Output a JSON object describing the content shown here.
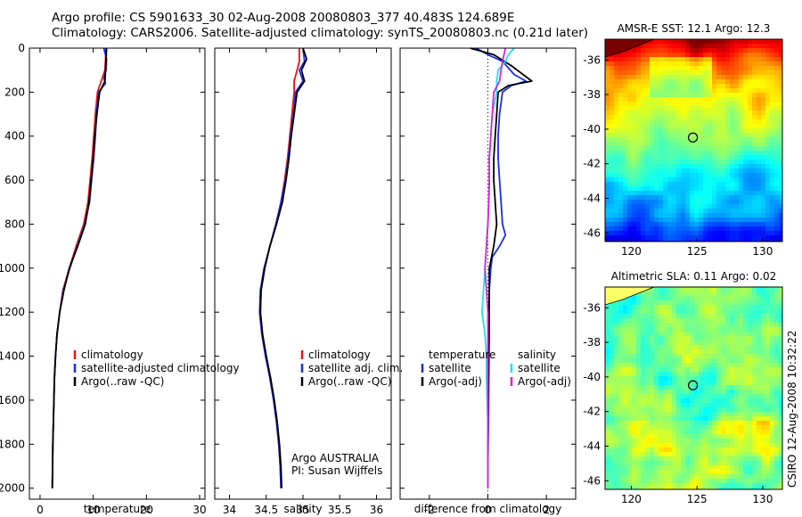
{
  "header": {
    "line1": "Argo profile: CS 5901633_30 02-Aug-2008 20080803_377 40.483S 124.689E",
    "line2": "Climatology: CARS2006. Satellite-adjusted climatology: synTS_20080803.nc (0.21d later)"
  },
  "side_caption": "CSIRO 12-Aug-2008 10:32:22",
  "colors": {
    "climatology": "#ee1111",
    "satellite": "#1a2ee6",
    "argo": "#000000",
    "salinity_satellite": "#22e0ee",
    "salinity_argo": "#dd22dd"
  },
  "chart_data": [
    {
      "type": "line",
      "name": "temperature-panel",
      "xlabel": "temperature",
      "ylabel": "",
      "xlim": [
        -2,
        31
      ],
      "ylim": [
        2050,
        0
      ],
      "xticks": [
        0,
        10,
        20,
        30
      ],
      "yticks": [
        0,
        200,
        400,
        600,
        800,
        1000,
        1200,
        1400,
        1600,
        1800,
        2000
      ],
      "legend": [
        "climatology",
        "satellite-adjusted climatology",
        "Argo(..raw -QC)"
      ],
      "series": [
        {
          "name": "climatology",
          "color": "#ee1111",
          "points": [
            [
              12.4,
              0
            ],
            [
              12.3,
              50
            ],
            [
              12.2,
              100
            ],
            [
              11.5,
              150
            ],
            [
              10.8,
              200
            ],
            [
              10.4,
              300
            ],
            [
              10.1,
              400
            ],
            [
              9.8,
              500
            ],
            [
              9.4,
              600
            ],
            [
              9.0,
              700
            ],
            [
              8.2,
              800
            ],
            [
              6.8,
              900
            ],
            [
              5.5,
              1000
            ],
            [
              4.3,
              1100
            ],
            [
              3.7,
              1200
            ],
            [
              3.2,
              1300
            ],
            [
              2.9,
              1400
            ],
            [
              2.7,
              1500
            ],
            [
              2.6,
              1600
            ],
            [
              2.5,
              1700
            ],
            [
              2.4,
              1800
            ],
            [
              2.35,
              1900
            ],
            [
              2.3,
              2000
            ]
          ]
        },
        {
          "name": "satellite-adjusted climatology",
          "color": "#1a2ee6",
          "points": [
            [
              12.0,
              0
            ],
            [
              12.5,
              50
            ],
            [
              12.4,
              100
            ],
            [
              12.0,
              140
            ],
            [
              12.3,
              160
            ],
            [
              11.0,
              200
            ],
            [
              10.6,
              300
            ],
            [
              10.4,
              400
            ],
            [
              10.1,
              500
            ],
            [
              9.7,
              600
            ],
            [
              9.3,
              700
            ],
            [
              8.4,
              800
            ],
            [
              7.0,
              900
            ],
            [
              5.6,
              1000
            ],
            [
              4.4,
              1100
            ],
            [
              3.7,
              1200
            ],
            [
              3.2,
              1300
            ],
            [
              2.9,
              1400
            ],
            [
              2.7,
              1500
            ],
            [
              2.6,
              1600
            ],
            [
              2.5,
              1700
            ],
            [
              2.4,
              1800
            ],
            [
              2.35,
              1900
            ],
            [
              2.3,
              2000
            ]
          ]
        },
        {
          "name": "Argo(..raw -QC)",
          "color": "#000000",
          "points": [
            [
              12.5,
              0
            ],
            [
              12.4,
              50
            ],
            [
              12.3,
              100
            ],
            [
              12.2,
              150
            ],
            [
              11.2,
              200
            ],
            [
              10.7,
              300
            ],
            [
              10.3,
              400
            ],
            [
              10.0,
              500
            ],
            [
              9.6,
              600
            ],
            [
              9.2,
              700
            ],
            [
              8.5,
              800
            ],
            [
              7.1,
              900
            ],
            [
              5.5,
              1000
            ],
            [
              4.5,
              1100
            ],
            [
              3.7,
              1200
            ],
            [
              3.2,
              1300
            ],
            [
              2.9,
              1400
            ],
            [
              2.7,
              1500
            ],
            [
              2.6,
              1600
            ],
            [
              2.5,
              1700
            ],
            [
              2.4,
              1800
            ],
            [
              2.35,
              1900
            ],
            [
              2.3,
              2000
            ]
          ]
        }
      ]
    },
    {
      "type": "line",
      "name": "salinity-panel",
      "xlabel": "salinity",
      "xlim": [
        33.8,
        36.2
      ],
      "ylim": [
        2050,
        0
      ],
      "xticks": [
        34,
        34.5,
        35,
        35.5,
        36
      ],
      "legend": [
        "climatology",
        "satellite adj. clim.",
        "Argo(..raw -QC)"
      ],
      "annotation": [
        "Argo AUSTRALIA",
        "PI: Susan Wijffels"
      ],
      "series": [
        {
          "name": "climatology",
          "color": "#ee1111",
          "points": [
            [
              34.95,
              0
            ],
            [
              34.95,
              60
            ],
            [
              34.92,
              100
            ],
            [
              34.88,
              150
            ],
            [
              34.88,
              200
            ],
            [
              34.85,
              300
            ],
            [
              34.82,
              400
            ],
            [
              34.79,
              500
            ],
            [
              34.75,
              600
            ],
            [
              34.7,
              700
            ],
            [
              34.64,
              800
            ],
            [
              34.55,
              900
            ],
            [
              34.48,
              1000
            ],
            [
              34.43,
              1100
            ],
            [
              34.42,
              1200
            ],
            [
              34.45,
              1300
            ],
            [
              34.5,
              1400
            ],
            [
              34.55,
              1500
            ],
            [
              34.6,
              1600
            ],
            [
              34.64,
              1700
            ],
            [
              34.67,
              1800
            ],
            [
              34.69,
              1900
            ],
            [
              34.7,
              2000
            ]
          ]
        },
        {
          "name": "satellite adj. clim.",
          "color": "#1a2ee6",
          "points": [
            [
              35.0,
              0
            ],
            [
              35.02,
              60
            ],
            [
              34.95,
              100
            ],
            [
              35.0,
              150
            ],
            [
              34.9,
              200
            ],
            [
              34.87,
              300
            ],
            [
              34.83,
              400
            ],
            [
              34.8,
              500
            ],
            [
              34.76,
              600
            ],
            [
              34.7,
              700
            ],
            [
              34.63,
              800
            ],
            [
              34.55,
              900
            ],
            [
              34.47,
              1000
            ],
            [
              34.42,
              1100
            ],
            [
              34.41,
              1200
            ],
            [
              34.44,
              1300
            ],
            [
              34.49,
              1400
            ],
            [
              34.55,
              1500
            ],
            [
              34.6,
              1600
            ],
            [
              34.64,
              1700
            ],
            [
              34.67,
              1800
            ],
            [
              34.69,
              1900
            ],
            [
              34.7,
              2000
            ]
          ]
        },
        {
          "name": "Argo(..raw -QC)",
          "color": "#000000",
          "points": [
            [
              35.0,
              0
            ],
            [
              35.05,
              50
            ],
            [
              34.98,
              100
            ],
            [
              35.02,
              150
            ],
            [
              34.92,
              200
            ],
            [
              34.88,
              300
            ],
            [
              34.84,
              400
            ],
            [
              34.81,
              500
            ],
            [
              34.77,
              600
            ],
            [
              34.72,
              700
            ],
            [
              34.64,
              800
            ],
            [
              34.55,
              900
            ],
            [
              34.48,
              1000
            ],
            [
              34.43,
              1100
            ],
            [
              34.42,
              1200
            ],
            [
              34.45,
              1300
            ],
            [
              34.5,
              1400
            ],
            [
              34.56,
              1500
            ],
            [
              34.61,
              1600
            ],
            [
              34.65,
              1700
            ],
            [
              34.68,
              1800
            ],
            [
              34.7,
              1900
            ],
            [
              34.71,
              2000
            ]
          ]
        }
      ]
    },
    {
      "type": "line",
      "name": "difference-panel",
      "xlabel": "difference from climatology",
      "xlim": [
        -3,
        3
      ],
      "ylim": [
        2050,
        0
      ],
      "xticks": [
        -2,
        0,
        2
      ],
      "legend": {
        "temperature": [
          "temperature",
          "satellite",
          "Argo(-adj)"
        ],
        "salinity": [
          "salinity",
          "satellite",
          "Argo(-adj)"
        ]
      },
      "series": [
        {
          "name": "temperature satellite",
          "color": "#1a2ee6",
          "points": [
            [
              -0.4,
              0
            ],
            [
              0.0,
              30
            ],
            [
              0.5,
              60
            ],
            [
              0.9,
              120
            ],
            [
              1.3,
              150
            ],
            [
              0.8,
              170
            ],
            [
              0.5,
              200
            ],
            [
              0.4,
              300
            ],
            [
              0.35,
              400
            ],
            [
              0.35,
              500
            ],
            [
              0.4,
              600
            ],
            [
              0.45,
              700
            ],
            [
              0.5,
              800
            ],
            [
              0.6,
              850
            ],
            [
              0.4,
              900
            ],
            [
              0.15,
              950
            ],
            [
              0.1,
              1000
            ],
            [
              0.05,
              1100
            ],
            [
              0.05,
              1200
            ],
            [
              0.05,
              1300
            ],
            [
              0.03,
              1500
            ],
            [
              0.02,
              1700
            ],
            [
              0.0,
              1900
            ],
            [
              0.0,
              2000
            ]
          ]
        },
        {
          "name": "temperature Argo(-adj)",
          "color": "#000000",
          "points": [
            [
              -0.6,
              0
            ],
            [
              0.2,
              30
            ],
            [
              0.8,
              80
            ],
            [
              1.5,
              150
            ],
            [
              0.7,
              170
            ],
            [
              0.35,
              200
            ],
            [
              0.3,
              300
            ],
            [
              0.25,
              400
            ],
            [
              0.2,
              500
            ],
            [
              0.2,
              600
            ],
            [
              0.25,
              700
            ],
            [
              0.3,
              800
            ],
            [
              0.2,
              900
            ],
            [
              0.05,
              1000
            ],
            [
              0.05,
              1100
            ],
            [
              0.03,
              1300
            ],
            [
              0.02,
              1500
            ],
            [
              0.0,
              1700
            ],
            [
              0.0,
              2000
            ]
          ]
        },
        {
          "name": "salinity satellite",
          "color": "#22e0ee",
          "points": [
            [
              0.9,
              0
            ],
            [
              0.7,
              30
            ],
            [
              0.6,
              60
            ],
            [
              0.35,
              100
            ],
            [
              0.3,
              150
            ],
            [
              0.3,
              200
            ],
            [
              0.15,
              300
            ],
            [
              0.1,
              400
            ],
            [
              0.05,
              500
            ],
            [
              0.05,
              600
            ],
            [
              0.03,
              700
            ],
            [
              0.0,
              800
            ],
            [
              -0.1,
              1000
            ],
            [
              -0.15,
              1100
            ],
            [
              -0.2,
              1200
            ],
            [
              -0.1,
              1300
            ],
            [
              -0.05,
              1400
            ],
            [
              -0.05,
              1500
            ],
            [
              0.0,
              1700
            ],
            [
              0.0,
              2000
            ]
          ]
        },
        {
          "name": "salinity Argo(-adj)",
          "color": "#dd22dd",
          "points": [
            [
              0.6,
              0
            ],
            [
              0.5,
              60
            ],
            [
              0.45,
              100
            ],
            [
              0.4,
              150
            ],
            [
              0.2,
              200
            ],
            [
              0.15,
              300
            ],
            [
              0.1,
              400
            ],
            [
              0.05,
              500
            ],
            [
              0.05,
              600
            ],
            [
              0.03,
              700
            ],
            [
              0.0,
              800
            ],
            [
              -0.05,
              900
            ],
            [
              -0.1,
              1000
            ],
            [
              -0.05,
              1100
            ],
            [
              0.0,
              1200
            ],
            [
              0.0,
              1300
            ],
            [
              0.0,
              1500
            ],
            [
              0.0,
              2000
            ]
          ]
        }
      ]
    },
    {
      "type": "heatmap",
      "name": "sst-map",
      "title": "AMSR-E SST: 12.1 Argo: 12.3",
      "xlim": [
        118,
        131.5
      ],
      "ylim": [
        -46.5,
        -34.8
      ],
      "xticks": [
        120,
        125,
        130
      ],
      "yticks": [
        -36,
        -38,
        -40,
        -42,
        -44,
        -46
      ],
      "marker": [
        124.689,
        -40.483
      ]
    },
    {
      "type": "heatmap",
      "name": "sla-map",
      "title": "Altimetric SLA: 0.11 Argo: 0.02",
      "xlim": [
        118,
        131.5
      ],
      "ylim": [
        -46.5,
        -34.8
      ],
      "xticks": [
        120,
        125,
        130
      ],
      "yticks": [
        -36,
        -38,
        -40,
        -42,
        -44,
        -46
      ],
      "marker": [
        124.689,
        -40.483
      ]
    }
  ]
}
